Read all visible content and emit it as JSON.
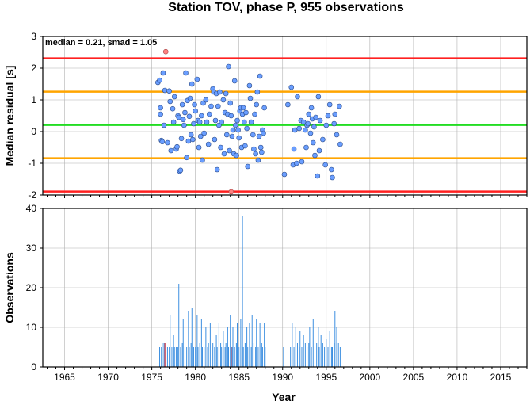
{
  "chart_data": [
    {
      "type": "scatter",
      "title": "Station TOV, phase P, 955 observations",
      "ylabel": "Median residual [s]",
      "annotation": "median = 0.21, smad = 1.05",
      "xlim": [
        1962.5,
        2018
      ],
      "ylim": [
        -2,
        3
      ],
      "yticks": [
        -2,
        -1,
        0,
        1,
        2,
        3
      ],
      "grid": true,
      "reference_lines": [
        {
          "y": 0.21,
          "color": "#22dd22",
          "role": "median"
        },
        {
          "y": 1.26,
          "color": "#ffa500",
          "role": "median + smad"
        },
        {
          "y": -0.84,
          "color": "#ffa500",
          "role": "median - smad"
        },
        {
          "y": 2.31,
          "color": "#ff2020",
          "role": "median + 2 smad"
        },
        {
          "y": -1.89,
          "color": "#ff2020",
          "role": "median - 2 smad"
        }
      ],
      "point_color": "#6a9eff",
      "outlier_color": "#ff8080",
      "points": [
        [
          1975.7,
          1.55
        ],
        [
          1975.9,
          1.62
        ],
        [
          1976.0,
          0.75
        ],
        [
          1976.0,
          0.55
        ],
        [
          1976.1,
          -0.28
        ],
        [
          1976.2,
          -0.32
        ],
        [
          1976.3,
          1.85
        ],
        [
          1976.4,
          0.2
        ],
        [
          1976.5,
          1.3
        ],
        [
          1976.8,
          -0.35
        ],
        [
          1977.0,
          1.28
        ],
        [
          1977.1,
          0.95
        ],
        [
          1977.2,
          -0.6
        ],
        [
          1977.4,
          0.72
        ],
        [
          1977.5,
          0.3
        ],
        [
          1977.6,
          1.1
        ],
        [
          1977.8,
          -0.55
        ],
        [
          1977.9,
          -0.48
        ],
        [
          1978.0,
          0.5
        ],
        [
          1978.1,
          0.45
        ],
        [
          1978.2,
          -1.25
        ],
        [
          1978.3,
          -1.22
        ],
        [
          1978.4,
          -0.22
        ],
        [
          1978.5,
          0.85
        ],
        [
          1978.6,
          0.38
        ],
        [
          1978.7,
          0.2
        ],
        [
          1978.8,
          0.6
        ],
        [
          1978.9,
          1.85
        ],
        [
          1979.0,
          -0.82
        ],
        [
          1979.1,
          0.98
        ],
        [
          1979.2,
          -0.3
        ],
        [
          1979.3,
          0.48
        ],
        [
          1979.4,
          1.05
        ],
        [
          1979.5,
          -0.1
        ],
        [
          1979.6,
          1.5
        ],
        [
          1979.7,
          -0.25
        ],
        [
          1979.8,
          0.25
        ],
        [
          1979.9,
          0.85
        ],
        [
          1980.0,
          0.65
        ],
        [
          1980.2,
          1.65
        ],
        [
          1980.3,
          0.35
        ],
        [
          1980.4,
          -0.5
        ],
        [
          1980.5,
          0.3
        ],
        [
          1980.6,
          -0.15
        ],
        [
          1980.7,
          0.5
        ],
        [
          1980.8,
          -0.9
        ],
        [
          1980.9,
          0.9
        ],
        [
          1981.0,
          -0.05
        ],
        [
          1981.2,
          1.0
        ],
        [
          1981.3,
          0.3
        ],
        [
          1981.5,
          -0.4
        ],
        [
          1981.6,
          0.55
        ],
        [
          1981.8,
          0.8
        ],
        [
          1982.0,
          1.35
        ],
        [
          1982.1,
          1.25
        ],
        [
          1982.2,
          -0.25
        ],
        [
          1982.3,
          0.35
        ],
        [
          1982.4,
          1.2
        ],
        [
          1982.5,
          -1.2
        ],
        [
          1982.6,
          0.8
        ],
        [
          1982.7,
          0.2
        ],
        [
          1982.8,
          1.25
        ],
        [
          1982.9,
          -0.5
        ],
        [
          1983.0,
          0.3
        ],
        [
          1983.2,
          1.0
        ],
        [
          1983.3,
          -0.7
        ],
        [
          1983.4,
          0.6
        ],
        [
          1983.5,
          1.2
        ],
        [
          1983.6,
          -0.1
        ],
        [
          1983.7,
          0.55
        ],
        [
          1983.8,
          2.05
        ],
        [
          1983.9,
          -0.6
        ],
        [
          1984.0,
          0.9
        ],
        [
          1984.1,
          0.5
        ],
        [
          1984.2,
          -0.15
        ],
        [
          1984.3,
          0.05
        ],
        [
          1984.4,
          -0.7
        ],
        [
          1984.5,
          1.6
        ],
        [
          1984.6,
          0.2
        ],
        [
          1984.7,
          -0.75
        ],
        [
          1984.8,
          0.35
        ],
        [
          1984.9,
          0.05
        ],
        [
          1985.0,
          -0.2
        ],
        [
          1985.1,
          0.65
        ],
        [
          1985.2,
          0.75
        ],
        [
          1985.3,
          -0.5
        ],
        [
          1985.4,
          0.55
        ],
        [
          1985.5,
          0.75
        ],
        [
          1985.6,
          0.3
        ],
        [
          1985.7,
          -0.45
        ],
        [
          1985.8,
          0.6
        ],
        [
          1985.9,
          0.1
        ],
        [
          1986.0,
          -1.1
        ],
        [
          1986.2,
          1.45
        ],
        [
          1986.3,
          1.05
        ],
        [
          1986.4,
          0.3
        ],
        [
          1986.6,
          -0.1
        ],
        [
          1986.7,
          -0.55
        ],
        [
          1986.8,
          0.55
        ],
        [
          1986.9,
          -0.7
        ],
        [
          1987.0,
          0.85
        ],
        [
          1987.1,
          1.25
        ],
        [
          1987.2,
          -0.9
        ],
        [
          1987.3,
          -0.15
        ],
        [
          1987.4,
          1.75
        ],
        [
          1987.5,
          -0.5
        ],
        [
          1987.6,
          -0.65
        ],
        [
          1987.7,
          0.05
        ],
        [
          1987.8,
          -0.05
        ],
        [
          1987.9,
          0.75
        ],
        [
          1990.2,
          -1.35
        ],
        [
          1990.6,
          0.85
        ],
        [
          1991.0,
          1.4
        ],
        [
          1991.2,
          -1.05
        ],
        [
          1991.3,
          -0.55
        ],
        [
          1991.4,
          0.05
        ],
        [
          1991.6,
          -1.0
        ],
        [
          1991.7,
          1.1
        ],
        [
          1991.9,
          0.1
        ],
        [
          1992.1,
          0.35
        ],
        [
          1992.2,
          -0.95
        ],
        [
          1992.4,
          0.3
        ],
        [
          1992.6,
          0.05
        ],
        [
          1992.7,
          -0.5
        ],
        [
          1992.8,
          0.2
        ],
        [
          1992.9,
          0.25
        ],
        [
          1993.0,
          0.55
        ],
        [
          1993.2,
          -0.05
        ],
        [
          1993.3,
          0.75
        ],
        [
          1993.4,
          0.4
        ],
        [
          1993.5,
          -0.35
        ],
        [
          1993.6,
          0.15
        ],
        [
          1993.7,
          -0.75
        ],
        [
          1993.8,
          0.45
        ],
        [
          1994.0,
          -1.4
        ],
        [
          1994.1,
          1.1
        ],
        [
          1994.2,
          -0.6
        ],
        [
          1994.3,
          0.35
        ],
        [
          1994.6,
          -0.25
        ],
        [
          1994.9,
          -1.05
        ],
        [
          1995.0,
          0.2
        ],
        [
          1995.2,
          0.5
        ],
        [
          1995.4,
          0.85
        ],
        [
          1995.6,
          -1.2
        ],
        [
          1995.7,
          -1.45
        ],
        [
          1995.9,
          0.25
        ],
        [
          1996.0,
          0.55
        ],
        [
          1996.2,
          -0.1
        ],
        [
          1996.5,
          0.8
        ],
        [
          1996.6,
          -0.4
        ]
      ],
      "outliers": [
        [
          1976.6,
          2.52
        ],
        [
          1984.1,
          -1.9
        ]
      ]
    },
    {
      "type": "bar",
      "ylabel": "Observations",
      "xlabel": "Year",
      "xlim": [
        1962.5,
        2018
      ],
      "ylim": [
        0,
        40
      ],
      "yticks": [
        0,
        10,
        20,
        30,
        40
      ],
      "xticks": [
        1965,
        1970,
        1975,
        1980,
        1985,
        1990,
        1995,
        2000,
        2005,
        2010,
        2015
      ],
      "grid": true,
      "bar_color": "#3d8fe0",
      "outlier_bar_color": "#ee4444",
      "bars": [
        [
          1975.9,
          5
        ],
        [
          1976.1,
          5
        ],
        [
          1976.2,
          6
        ],
        [
          1976.4,
          6
        ],
        [
          1976.6,
          6
        ],
        [
          1976.8,
          5
        ],
        [
          1977.0,
          5
        ],
        [
          1977.1,
          13
        ],
        [
          1977.3,
          5
        ],
        [
          1977.5,
          8
        ],
        [
          1977.6,
          5
        ],
        [
          1977.8,
          5
        ],
        [
          1978.0,
          5
        ],
        [
          1978.1,
          21
        ],
        [
          1978.3,
          5
        ],
        [
          1978.5,
          6
        ],
        [
          1978.6,
          12
        ],
        [
          1978.8,
          5
        ],
        [
          1979.0,
          5
        ],
        [
          1979.2,
          14
        ],
        [
          1979.3,
          5
        ],
        [
          1979.5,
          6
        ],
        [
          1979.6,
          15
        ],
        [
          1979.8,
          5
        ],
        [
          1980.0,
          5
        ],
        [
          1980.2,
          13
        ],
        [
          1980.3,
          5
        ],
        [
          1980.5,
          6
        ],
        [
          1980.7,
          12
        ],
        [
          1980.8,
          5
        ],
        [
          1981.0,
          5
        ],
        [
          1981.2,
          10
        ],
        [
          1981.4,
          5
        ],
        [
          1981.5,
          6
        ],
        [
          1981.7,
          11
        ],
        [
          1981.9,
          5
        ],
        [
          1982.0,
          6
        ],
        [
          1982.2,
          5
        ],
        [
          1982.4,
          8
        ],
        [
          1982.5,
          5
        ],
        [
          1982.7,
          11
        ],
        [
          1982.9,
          6
        ],
        [
          1983.0,
          5
        ],
        [
          1983.2,
          9
        ],
        [
          1983.4,
          5
        ],
        [
          1983.5,
          6
        ],
        [
          1983.7,
          10
        ],
        [
          1983.8,
          5
        ],
        [
          1984.0,
          13
        ],
        [
          1984.2,
          5
        ],
        [
          1984.3,
          10
        ],
        [
          1984.5,
          5
        ],
        [
          1984.7,
          6
        ],
        [
          1984.8,
          11
        ],
        [
          1985.0,
          5
        ],
        [
          1985.2,
          12
        ],
        [
          1985.4,
          38
        ],
        [
          1985.5,
          5
        ],
        [
          1985.7,
          6
        ],
        [
          1985.9,
          10
        ],
        [
          1986.0,
          5
        ],
        [
          1986.2,
          11
        ],
        [
          1986.4,
          5
        ],
        [
          1986.5,
          13
        ],
        [
          1986.7,
          6
        ],
        [
          1986.9,
          5
        ],
        [
          1987.0,
          12
        ],
        [
          1987.2,
          5
        ],
        [
          1987.4,
          11
        ],
        [
          1987.6,
          6
        ],
        [
          1987.7,
          5
        ],
        [
          1987.9,
          11
        ],
        [
          1988.0,
          5
        ],
        [
          1990.1,
          5
        ],
        [
          1990.9,
          5
        ],
        [
          1991.1,
          11
        ],
        [
          1991.3,
          5
        ],
        [
          1991.5,
          10
        ],
        [
          1991.7,
          6
        ],
        [
          1991.9,
          5
        ],
        [
          1992.0,
          9
        ],
        [
          1992.2,
          5
        ],
        [
          1992.4,
          8
        ],
        [
          1992.6,
          6
        ],
        [
          1992.8,
          5
        ],
        [
          1993.0,
          6
        ],
        [
          1993.1,
          10
        ],
        [
          1993.3,
          5
        ],
        [
          1993.5,
          12
        ],
        [
          1993.7,
          5
        ],
        [
          1993.9,
          6
        ],
        [
          1994.1,
          10
        ],
        [
          1994.2,
          5
        ],
        [
          1994.4,
          8
        ],
        [
          1994.6,
          6
        ],
        [
          1994.8,
          5
        ],
        [
          1995.0,
          7
        ],
        [
          1995.2,
          5
        ],
        [
          1995.4,
          9
        ],
        [
          1995.6,
          5
        ],
        [
          1995.7,
          5
        ],
        [
          1995.9,
          6
        ],
        [
          1996.0,
          14
        ],
        [
          1996.2,
          10
        ],
        [
          1996.4,
          6
        ],
        [
          1996.6,
          5
        ]
      ],
      "outlier_bars": [
        [
          1976.5,
          6
        ],
        [
          1984.1,
          5
        ]
      ]
    }
  ]
}
